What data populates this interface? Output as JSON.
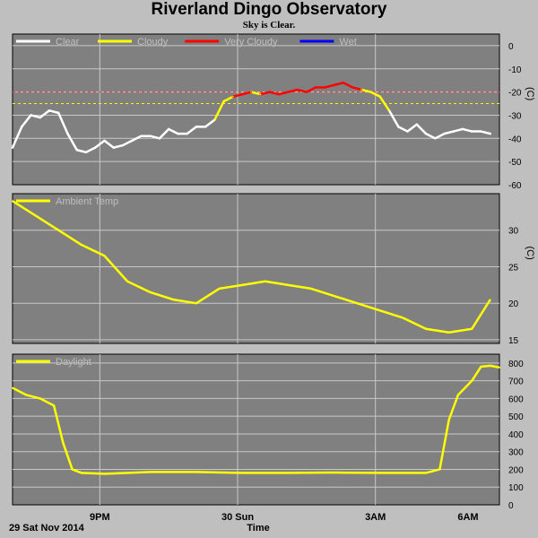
{
  "header": {
    "title": "Riverland Dingo Observatory",
    "subtitle": "Sky is Clear."
  },
  "footer": {
    "date_label": "29 Sat Nov 2014",
    "x_axis_title": "Time"
  },
  "colors": {
    "background": "#bfbfbf",
    "plot_bg": "#808080",
    "grid": "#c8c8c8",
    "clear": "#ffffff",
    "cloudy": "#ffff00",
    "very_cloudy": "#ff0000",
    "wet": "#0000ff",
    "threshold_red": "#ff3030",
    "threshold_yellow": "#ffff00"
  },
  "chart_data": [
    {
      "type": "line",
      "name_key": "sky",
      "legend": [
        {
          "label": "Clear",
          "color": "#ffffff"
        },
        {
          "label": "Cloudy",
          "color": "#ffff00"
        },
        {
          "label": "Very Cloudy",
          "color": "#ff0000"
        },
        {
          "label": "Wet",
          "color": "#0000ff"
        }
      ],
      "ylabel": "(C)",
      "ylim": [
        -60,
        5
      ],
      "yticks": [
        0,
        -10,
        -20,
        -30,
        -40,
        -50,
        -60
      ],
      "thresholds": [
        {
          "value": -20,
          "color": "#ff3030"
        },
        {
          "value": -25,
          "color": "#ffff00"
        }
      ],
      "x_hours": [
        0,
        0.2,
        0.4,
        0.6,
        0.8,
        1.0,
        1.2,
        1.4,
        1.6,
        1.8,
        2.0,
        2.2,
        2.4,
        2.6,
        2.8,
        3.0,
        3.2,
        3.4,
        3.6,
        3.8,
        4.0,
        4.2,
        4.4,
        4.6,
        4.8,
        5.0,
        5.2,
        5.4,
        5.6,
        5.8,
        6.0,
        6.2,
        6.4,
        6.6,
        6.8,
        7.0,
        7.2,
        7.4,
        7.6,
        7.8,
        8.0,
        8.2,
        8.4,
        8.6,
        8.8,
        9.0,
        9.2,
        9.4,
        9.6,
        9.8,
        10.0,
        10.2,
        10.4
      ],
      "values": [
        -44,
        -35,
        -30,
        -31,
        -28,
        -29,
        -38,
        -45,
        -46,
        -44,
        -41,
        -44,
        -43,
        -41,
        -39,
        -39,
        -40,
        -36,
        -38,
        -38,
        -35,
        -35,
        -32,
        -24,
        -22,
        -21,
        -20,
        -21,
        -20,
        -21,
        -20,
        -19,
        -20,
        -18,
        -18,
        -17,
        -16,
        -18,
        -19,
        -20,
        -22,
        -28,
        -35,
        -37,
        -34,
        -38,
        -40,
        -38,
        -37,
        -36,
        -37,
        -37,
        -38
      ],
      "states": [
        "Clear",
        "Clear",
        "Clear",
        "Clear",
        "Clear",
        "Clear",
        "Clear",
        "Clear",
        "Clear",
        "Clear",
        "Clear",
        "Clear",
        "Clear",
        "Clear",
        "Clear",
        "Clear",
        "Clear",
        "Clear",
        "Clear",
        "Clear",
        "Clear",
        "Clear",
        "Clear",
        "Cloudy",
        "Cloudy",
        "Very Cloudy",
        "Very Cloudy",
        "Cloudy",
        "Very Cloudy",
        "Very Cloudy",
        "Very Cloudy",
        "Very Cloudy",
        "Very Cloudy",
        "Very Cloudy",
        "Very Cloudy",
        "Very Cloudy",
        "Very Cloudy",
        "Very Cloudy",
        "Very Cloudy",
        "Cloudy",
        "Cloudy",
        "Cloudy",
        "Clear",
        "Clear",
        "Clear",
        "Clear",
        "Clear",
        "Clear",
        "Clear",
        "Clear",
        "Clear",
        "Clear",
        "Clear"
      ]
    },
    {
      "type": "line",
      "name_key": "ambient",
      "legend": [
        {
          "label": "Ambient Temp",
          "color": "#ffff00"
        }
      ],
      "ylabel": "(C)",
      "ylim": [
        14.5,
        35
      ],
      "yticks": [
        30,
        25,
        20,
        15
      ],
      "x_hours": [
        0,
        0.5,
        1.0,
        1.5,
        2.0,
        2.5,
        3.0,
        3.5,
        4.0,
        4.5,
        5.0,
        5.5,
        6.0,
        6.5,
        7.0,
        7.5,
        8.0,
        8.5,
        9.0,
        9.5,
        10.0,
        10.4
      ],
      "values": [
        34,
        32,
        30,
        28,
        26.5,
        23,
        21.5,
        20.5,
        20,
        22,
        22.5,
        23,
        22.5,
        22,
        21,
        20,
        19,
        18,
        16.5,
        16,
        16.5,
        20.5
      ],
      "color": "#ffff00"
    },
    {
      "type": "line",
      "name_key": "daylight",
      "legend": [
        {
          "label": "Daylight",
          "color": "#ffff00"
        }
      ],
      "ylim": [
        0,
        850
      ],
      "yticks": [
        800,
        700,
        600,
        500,
        400,
        300,
        200,
        100,
        0
      ],
      "xtick_labels": [
        "9PM",
        "30 Sun",
        "3AM",
        "6AM"
      ],
      "xtick_hours": [
        1.9,
        4.9,
        7.9,
        10.8
      ],
      "x_hours": [
        0,
        0.3,
        0.6,
        0.9,
        1.1,
        1.3,
        1.5,
        2.0,
        3.0,
        4.0,
        5.0,
        6.0,
        7.0,
        8.0,
        9.0,
        9.3,
        9.5,
        9.7,
        10.0,
        10.2,
        10.4,
        10.6
      ],
      "values": [
        660,
        620,
        600,
        560,
        350,
        200,
        180,
        175,
        185,
        185,
        180,
        180,
        182,
        180,
        180,
        200,
        480,
        620,
        700,
        780,
        785,
        775
      ],
      "color": "#ffff00"
    }
  ]
}
